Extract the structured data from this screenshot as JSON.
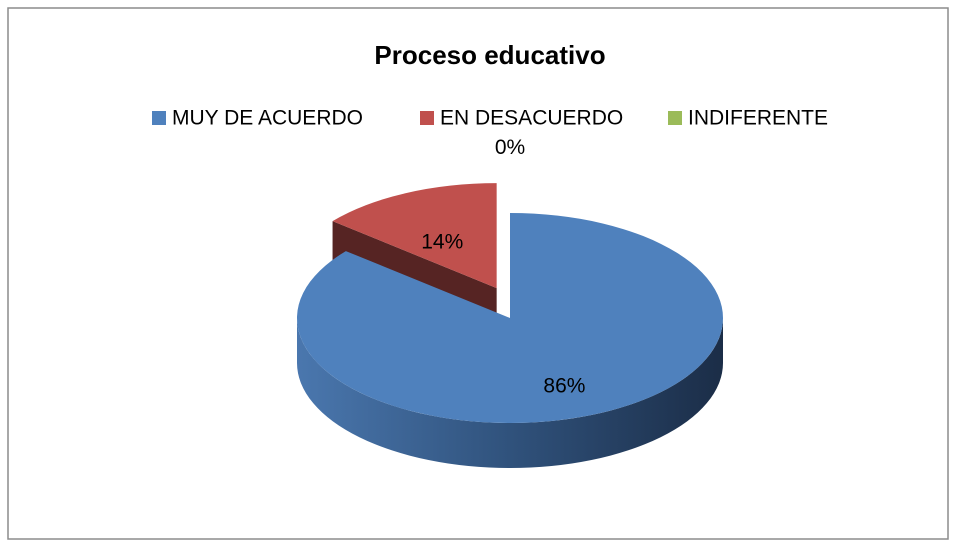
{
  "chart_data": {
    "type": "pie",
    "title": "Proceso educativo",
    "categories": [
      "MUY DE ACUERDO",
      "EN DESACUERDO",
      "INDIFERENTE"
    ],
    "values": [
      86,
      14,
      0
    ],
    "value_labels": [
      "86%",
      "14%",
      "0%"
    ],
    "colors": [
      "#4f81bd",
      "#c0504d",
      "#9bbb59"
    ],
    "legend": "top"
  }
}
